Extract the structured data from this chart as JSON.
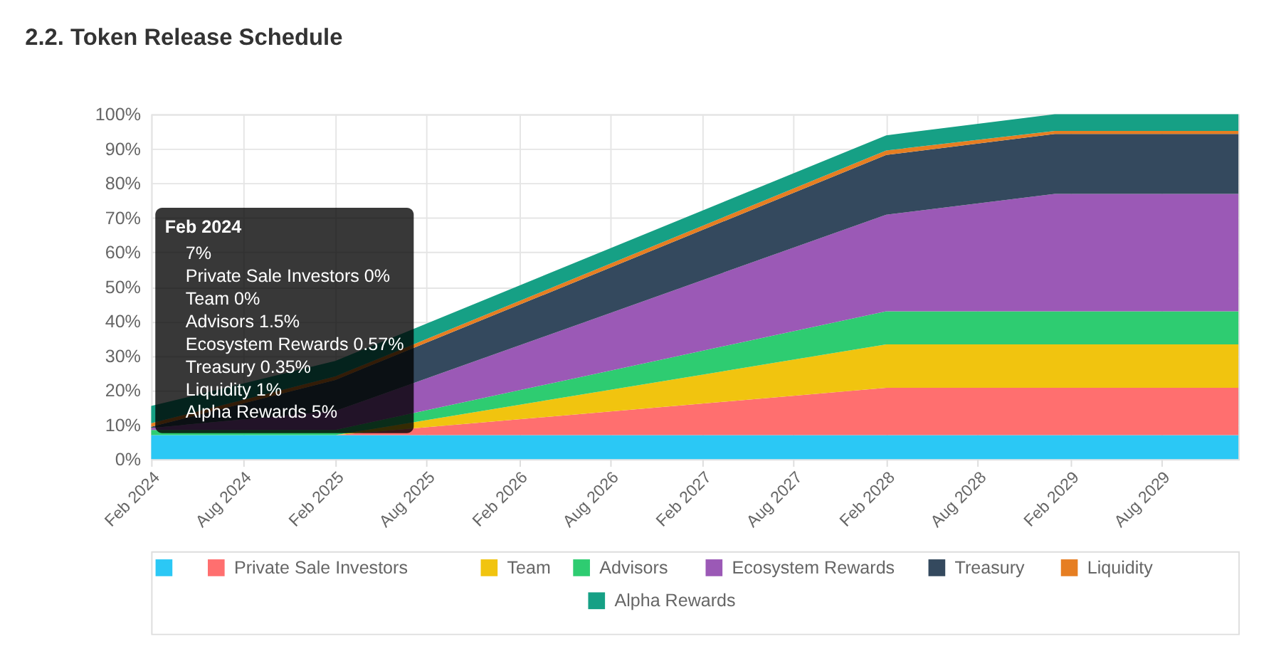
{
  "chart_data": {
    "type": "area",
    "title": "2.2. Token Release Schedule",
    "stacked": true,
    "x": [
      "2024-02",
      "2025-02",
      "2028-02",
      "2029-01",
      "2030-01"
    ],
    "xlim": [
      "2024-02",
      "2030-01"
    ],
    "xticks": [
      {
        "value": "2024-02",
        "label": "Feb 2024"
      },
      {
        "value": "2024-08",
        "label": "Aug 2024"
      },
      {
        "value": "2025-02",
        "label": "Feb 2025"
      },
      {
        "value": "2025-08",
        "label": "Aug 2025"
      },
      {
        "value": "2026-02",
        "label": "Feb 2026"
      },
      {
        "value": "2026-08",
        "label": "Aug 2026"
      },
      {
        "value": "2027-02",
        "label": "Feb 2027"
      },
      {
        "value": "2027-08",
        "label": "Aug 2027"
      },
      {
        "value": "2028-02",
        "label": "Feb 2028"
      },
      {
        "value": "2028-08",
        "label": "Aug 2028"
      },
      {
        "value": "2029-02",
        "label": "Feb 2029"
      },
      {
        "value": "2029-08",
        "label": "Aug 2029"
      }
    ],
    "ylim": [
      0,
      100
    ],
    "yticks": [
      {
        "value": 0,
        "label": "0%"
      },
      {
        "value": 10,
        "label": "10%"
      },
      {
        "value": 20,
        "label": "20%"
      },
      {
        "value": 30,
        "label": "30%"
      },
      {
        "value": 40,
        "label": "40%"
      },
      {
        "value": 50,
        "label": "50%"
      },
      {
        "value": 60,
        "label": "60%"
      },
      {
        "value": 70,
        "label": "70%"
      },
      {
        "value": 80,
        "label": "80%"
      },
      {
        "value": 90,
        "label": "90%"
      },
      {
        "value": 100,
        "label": "100%"
      }
    ],
    "grid": true,
    "legend": "bottom",
    "marker": "none",
    "series": [
      {
        "color": "#2bc8f5",
        "values": [
          7,
          7,
          7,
          7,
          7
        ]
      },
      {
        "name": "Private Sale Investors",
        "color": "#ff6f6f",
        "values": [
          0,
          0,
          13.7,
          13.7,
          13.7
        ]
      },
      {
        "name": "Team",
        "color": "#f1c40f",
        "values": [
          0,
          0,
          12.6,
          12.6,
          12.6
        ]
      },
      {
        "name": "Advisors",
        "color": "#2ecc71",
        "values": [
          1.5,
          1.5,
          9.6,
          9.6,
          9.6
        ]
      },
      {
        "name": "Ecosystem Rewards",
        "color": "#9b59b6",
        "values": [
          0.57,
          5.5,
          28,
          34,
          34
        ]
      },
      {
        "name": "Treasury",
        "color": "#34495e",
        "values": [
          0.35,
          9,
          17.3,
          17.4,
          17.4
        ]
      },
      {
        "name": "Liquidity",
        "color": "#e67e22",
        "values": [
          1,
          1,
          1.3,
          0.9,
          0.9
        ]
      },
      {
        "name": "Alpha Rewards",
        "color": "#16a085",
        "values": [
          5,
          4.5,
          4.4,
          4.8,
          4.8
        ]
      }
    ],
    "annotations": [
      "Feb 2024",
      "7%",
      "Private Sale Investors 0%",
      "Team 0%",
      "Advisors 1.5%",
      "Ecosystem Rewards 0.57%",
      "Treasury 0.35%",
      "Liquidity 1%",
      "Alpha Rewards 5%"
    ]
  }
}
